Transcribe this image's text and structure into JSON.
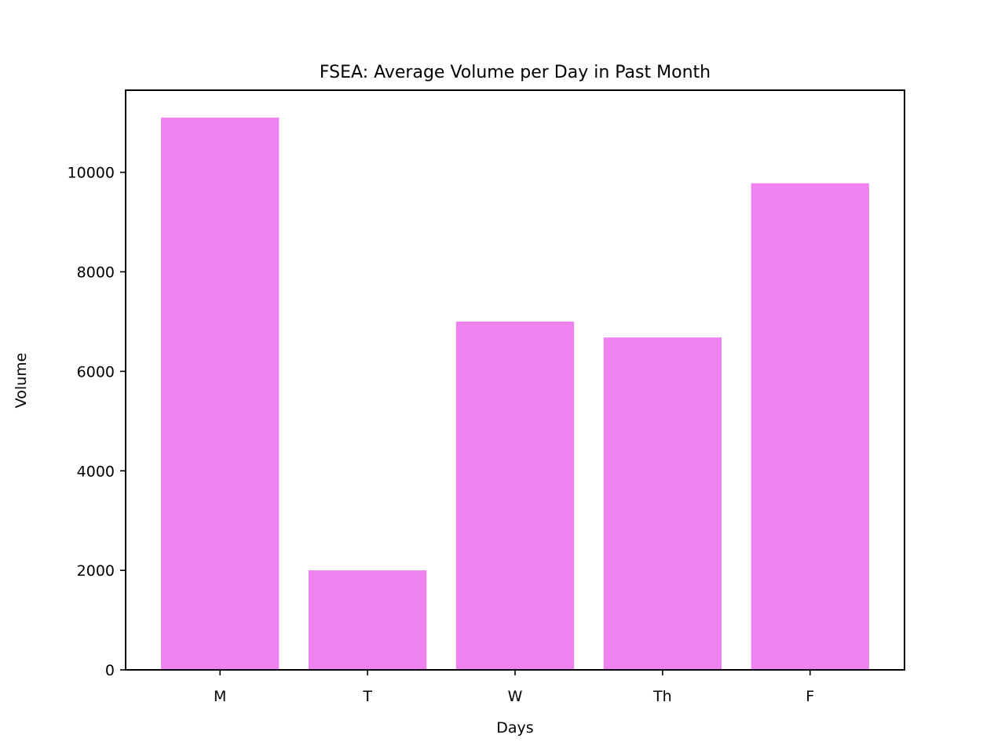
{
  "chart_data": {
    "type": "bar",
    "title": "FSEA: Average Volume per Day in Past Month",
    "xlabel": "Days",
    "ylabel": "Volume",
    "categories": [
      "M",
      "T",
      "W",
      "Th",
      "F"
    ],
    "values": [
      11100,
      2000,
      7000,
      6680,
      9780
    ],
    "ylim": [
      0,
      11650
    ],
    "yticks": [
      0,
      2000,
      4000,
      6000,
      8000,
      10000
    ],
    "ytick_labels": [
      "0",
      "2000",
      "4000",
      "6000",
      "8000",
      "10000"
    ],
    "bar_color": "#ee82ee",
    "grid": false,
    "legend": "none"
  }
}
